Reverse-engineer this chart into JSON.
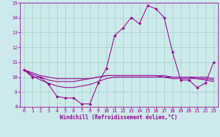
{
  "xlabel": "Windchill (Refroidissement éolien,°C)",
  "background_color": "#cceae9",
  "line_color": "#990099",
  "grid_color": "#99cccc",
  "hours": [
    0,
    1,
    2,
    3,
    4,
    5,
    6,
    7,
    8,
    9,
    10,
    11,
    12,
    13,
    14,
    15,
    16,
    17,
    18,
    19,
    20,
    21,
    22,
    23
  ],
  "windchill": [
    10.5,
    10.0,
    10.0,
    9.5,
    8.7,
    8.6,
    8.6,
    8.2,
    8.2,
    9.6,
    10.6,
    12.8,
    13.3,
    14.0,
    13.6,
    14.8,
    14.6,
    14.0,
    11.7,
    9.8,
    9.8,
    9.3,
    9.6,
    11.0
  ],
  "temp_line1": [
    10.5,
    10.3,
    10.1,
    10.0,
    9.9,
    9.9,
    9.9,
    9.9,
    9.9,
    10.0,
    10.1,
    10.1,
    10.1,
    10.1,
    10.1,
    10.1,
    10.1,
    10.1,
    10.0,
    10.0,
    10.0,
    10.0,
    10.0,
    9.9
  ],
  "temp_line2": [
    10.5,
    10.2,
    10.0,
    9.8,
    9.7,
    9.7,
    9.7,
    9.8,
    9.9,
    10.0,
    10.1,
    10.1,
    10.1,
    10.1,
    10.1,
    10.1,
    10.1,
    10.0,
    10.0,
    10.0,
    10.0,
    9.9,
    9.9,
    9.8
  ],
  "temp_line3": [
    10.5,
    10.1,
    9.8,
    9.6,
    9.4,
    9.3,
    9.3,
    9.4,
    9.5,
    9.7,
    9.9,
    10.0,
    10.0,
    10.0,
    10.0,
    10.0,
    10.0,
    10.0,
    9.9,
    9.9,
    9.9,
    9.9,
    9.8,
    9.7
  ],
  "ylim": [
    8,
    15
  ],
  "xlim_min": -0.5,
  "xlim_max": 23.5,
  "yticks": [
    8,
    9,
    10,
    11,
    12,
    13,
    14,
    15
  ],
  "xticks": [
    0,
    1,
    2,
    3,
    4,
    5,
    6,
    7,
    8,
    9,
    10,
    11,
    12,
    13,
    14,
    15,
    16,
    17,
    18,
    19,
    20,
    21,
    22,
    23
  ],
  "tick_fontsize": 5,
  "xlabel_fontsize": 5.5
}
